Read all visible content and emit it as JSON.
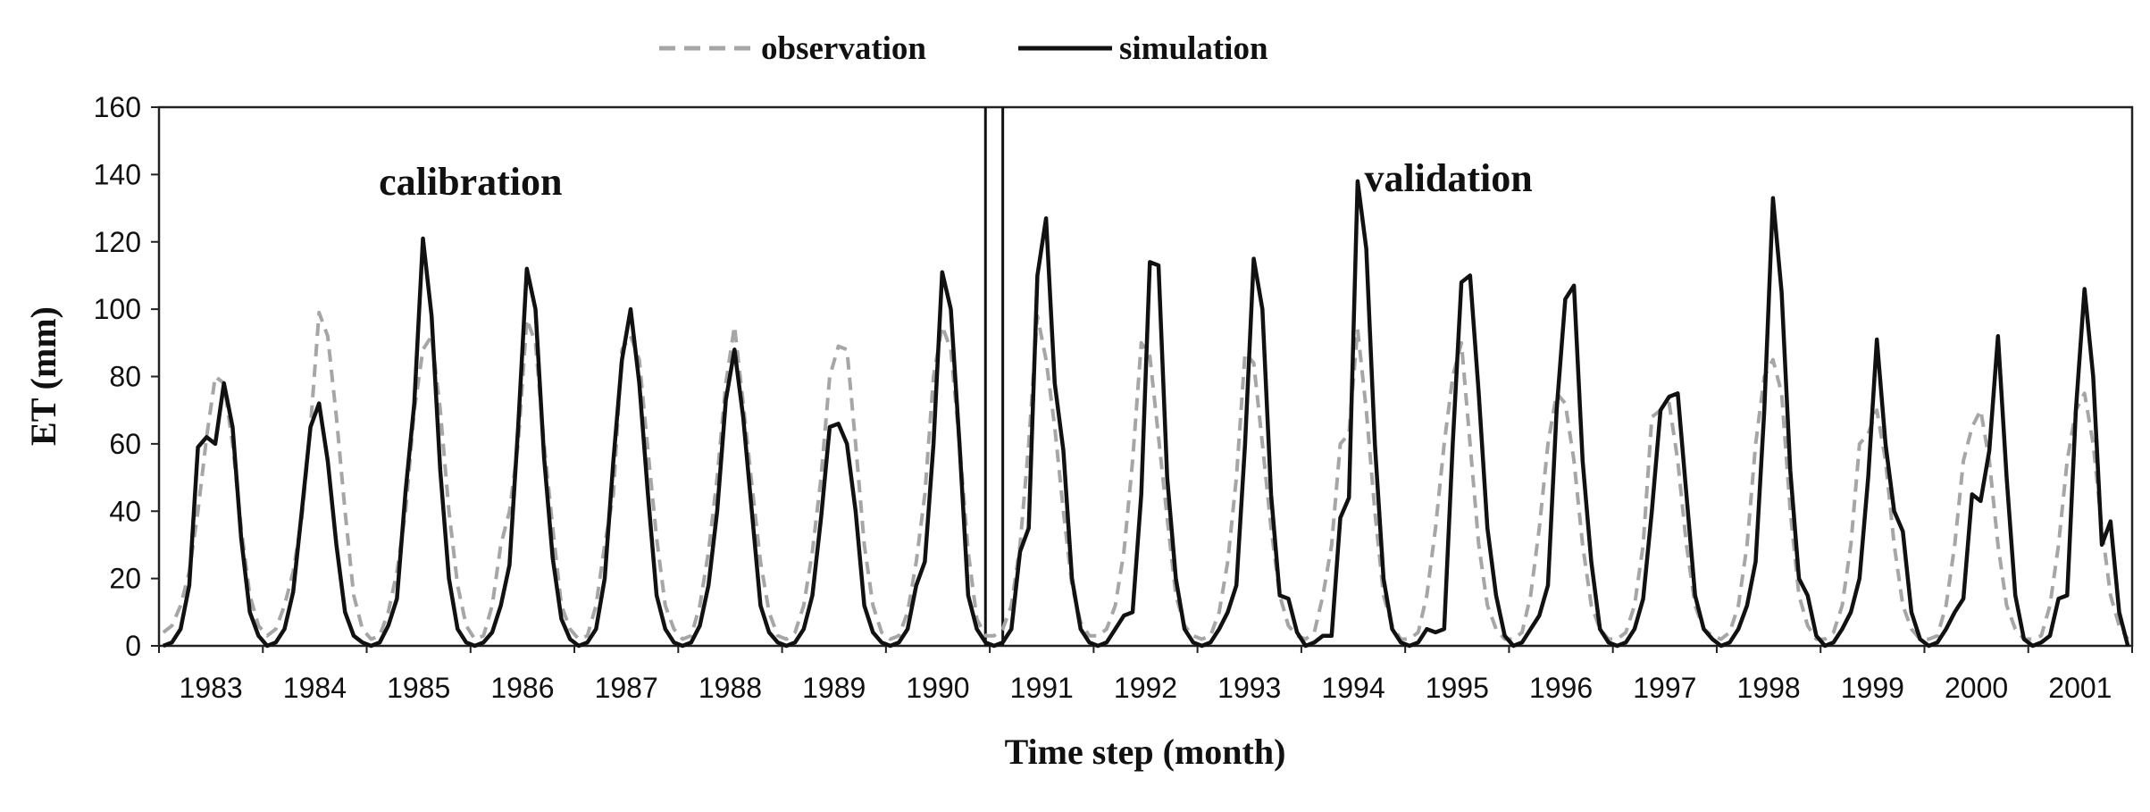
{
  "chart_data": {
    "type": "line",
    "title": "",
    "xlabel": "Time step (month)",
    "ylabel": "ET (mm)",
    "ylim": [
      0,
      160
    ],
    "yticks": [
      "0",
      "20",
      "40",
      "60",
      "80",
      "100",
      "120",
      "140",
      "160"
    ],
    "x_unit": "month",
    "x_range_months": [
      0,
      228
    ],
    "year_labels": [
      "1983",
      "1984",
      "1985",
      "1986",
      "1987",
      "1988",
      "1989",
      "1990",
      "1991",
      "1992",
      "1993",
      "1994",
      "1995",
      "1996",
      "1997",
      "1998",
      "1999",
      "2000",
      "2001"
    ],
    "grid": false,
    "legend_position": "top-center",
    "annotations": [
      {
        "text": "calibration",
        "x_month": 36,
        "y": 138
      },
      {
        "text": "validation",
        "x_month": 149,
        "y": 139
      }
    ],
    "period_separators_month": [
      95.5,
      97.5
    ],
    "series": [
      {
        "name": "observation",
        "style": "dashed",
        "color": "#a6a6a6",
        "values": [
          4,
          6,
          12,
          22,
          40,
          62,
          80,
          78,
          60,
          35,
          15,
          6,
          3,
          5,
          12,
          22,
          38,
          65,
          99,
          92,
          68,
          40,
          15,
          5,
          2,
          3,
          10,
          22,
          40,
          70,
          88,
          92,
          70,
          40,
          18,
          6,
          2,
          3,
          12,
          30,
          40,
          60,
          97,
          90,
          60,
          35,
          12,
          5,
          2,
          3,
          12,
          30,
          45,
          88,
          92,
          85,
          58,
          32,
          12,
          5,
          2,
          3,
          12,
          28,
          50,
          78,
          95,
          72,
          48,
          25,
          10,
          3,
          2,
          4,
          12,
          28,
          50,
          80,
          89,
          88,
          60,
          30,
          12,
          4,
          2,
          3,
          10,
          25,
          45,
          80,
          95,
          88,
          60,
          28,
          8,
          3,
          3,
          5,
          12,
          30,
          60,
          98,
          85,
          65,
          40,
          18,
          7,
          3,
          3,
          5,
          12,
          28,
          55,
          90,
          86,
          62,
          38,
          15,
          6,
          3,
          2,
          3,
          10,
          25,
          50,
          87,
          84,
          60,
          35,
          15,
          6,
          3,
          2,
          4,
          15,
          30,
          60,
          63,
          94,
          70,
          40,
          15,
          6,
          2,
          2,
          4,
          15,
          35,
          60,
          80,
          90,
          60,
          30,
          12,
          5,
          2,
          2,
          4,
          15,
          35,
          60,
          75,
          72,
          55,
          30,
          12,
          5,
          2,
          2,
          4,
          12,
          30,
          68,
          70,
          72,
          55,
          30,
          12,
          5,
          3,
          2,
          4,
          12,
          30,
          60,
          80,
          85,
          75,
          40,
          15,
          6,
          2,
          2,
          4,
          12,
          30,
          60,
          63,
          70,
          55,
          30,
          12,
          5,
          2,
          2,
          3,
          12,
          30,
          55,
          65,
          70,
          55,
          30,
          12,
          5,
          2,
          2,
          3,
          12,
          30,
          55,
          70,
          75,
          60,
          35,
          15,
          6,
          2
        ]
      },
      {
        "name": "simulation",
        "style": "solid",
        "color": "#111111",
        "values": [
          0,
          1,
          5,
          18,
          59,
          62,
          60,
          78,
          65,
          32,
          10,
          3,
          0,
          1,
          5,
          16,
          40,
          65,
          72,
          55,
          30,
          10,
          3,
          1,
          0,
          1,
          6,
          14,
          46,
          72,
          121,
          98,
          52,
          20,
          5,
          1,
          0,
          1,
          4,
          12,
          24,
          65,
          112,
          100,
          56,
          26,
          8,
          2,
          0,
          1,
          5,
          20,
          55,
          85,
          100,
          78,
          45,
          15,
          5,
          1,
          0,
          1,
          6,
          18,
          40,
          73,
          88,
          68,
          40,
          12,
          4,
          1,
          0,
          1,
          5,
          15,
          38,
          65,
          66,
          60,
          40,
          12,
          4,
          1,
          0,
          1,
          5,
          18,
          25,
          60,
          111,
          100,
          60,
          15,
          5,
          1,
          0,
          1,
          5,
          28,
          35,
          110,
          127,
          78,
          58,
          20,
          5,
          1,
          0,
          1,
          5,
          9,
          10,
          45,
          114,
          113,
          50,
          20,
          5,
          1,
          0,
          1,
          5,
          10,
          18,
          60,
          115,
          100,
          45,
          15,
          14,
          4,
          0,
          1,
          3,
          3,
          38,
          44,
          138,
          118,
          60,
          20,
          5,
          1,
          0,
          1,
          5,
          4,
          5,
          60,
          108,
          110,
          75,
          35,
          15,
          3,
          0,
          1,
          5,
          9,
          18,
          70,
          103,
          107,
          55,
          25,
          5,
          1,
          0,
          1,
          5,
          14,
          40,
          70,
          74,
          75,
          45,
          15,
          5,
          2,
          0,
          1,
          5,
          12,
          25,
          70,
          133,
          105,
          52,
          20,
          15,
          3,
          0,
          1,
          5,
          10,
          20,
          50,
          91,
          60,
          40,
          34,
          10,
          2,
          0,
          1,
          5,
          10,
          14,
          45,
          43,
          58,
          92,
          50,
          15,
          2,
          0,
          1,
          3,
          14,
          15,
          70,
          106,
          80,
          30,
          37,
          10,
          0
        ]
      }
    ]
  }
}
